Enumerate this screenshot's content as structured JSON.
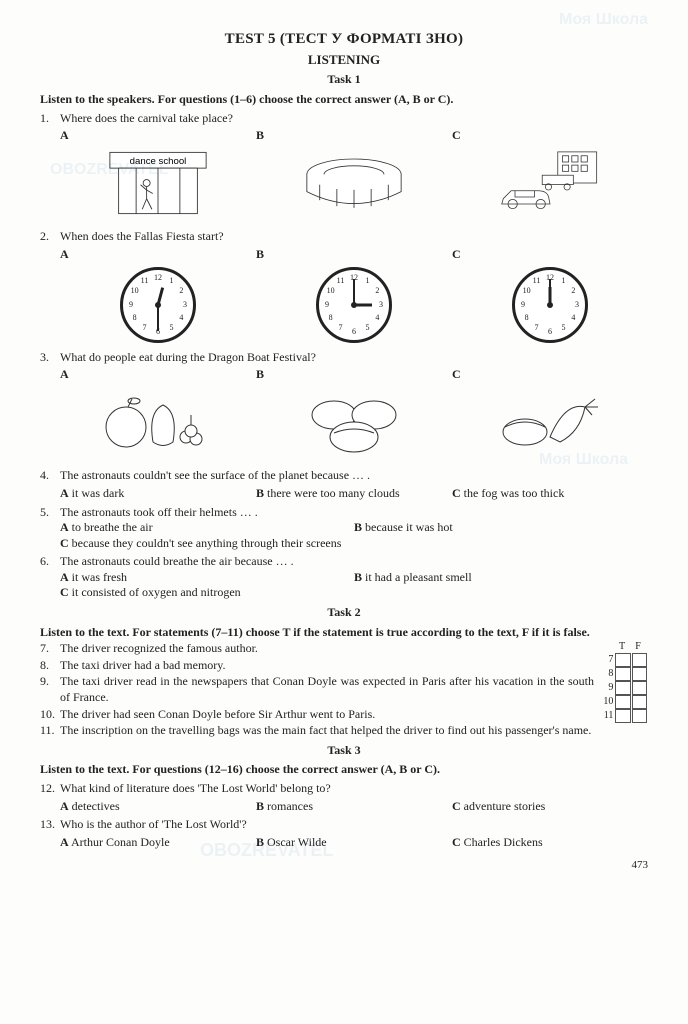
{
  "header": {
    "title": "TEST 5 (ТЕСТ У ФОРМАТІ ЗНО)",
    "section": "LISTENING",
    "task1": "Task 1",
    "task2": "Task 2",
    "task3": "Task 3",
    "instr1": "Listen to the speakers. For questions (1–6) choose the correct answer (A, B or C).",
    "instr2": "Listen to the text. For statements (7–11) choose T if the statement is true according to the text, F if it is false.",
    "instr3": "Listen to the text. For questions (12–16) choose the correct answer (A, B or C)."
  },
  "opts": {
    "A": "A",
    "B": "B",
    "C": "C",
    "T": "T",
    "F": "F"
  },
  "q1": {
    "n": "1.",
    "text": "Where does the carnival take place?",
    "imgA_label": "dance school"
  },
  "q2": {
    "n": "2.",
    "text": "When does the Fallas Fiesta start?",
    "clocks": [
      {
        "hour": 12,
        "minute": 30
      },
      {
        "hour": 3,
        "minute": 0
      },
      {
        "hour": 12,
        "minute": 0
      }
    ]
  },
  "q3": {
    "n": "3.",
    "text": "What do people eat during the Dragon Boat Festival?"
  },
  "q4": {
    "n": "4.",
    "text": "The astronauts couldn't see the surface of the planet because … .",
    "a": "it was dark",
    "b": "there were too many clouds",
    "c": "the fog was too thick"
  },
  "q5": {
    "n": "5.",
    "text": "The astronauts took off their helmets … .",
    "a": "to breathe the air",
    "b": "because it was hot",
    "c": "because they couldn't see anything through their screens"
  },
  "q6": {
    "n": "6.",
    "text": "The astronauts could breathe the air because … .",
    "a": "it was fresh",
    "b": "it had a pleasant smell",
    "c": "it consisted of oxygen and nitrogen"
  },
  "task2s": {
    "s7": {
      "n": "7.",
      "t": "The driver recognized the famous author."
    },
    "s8": {
      "n": "8.",
      "t": "The taxi driver had a bad memory."
    },
    "s9": {
      "n": "9.",
      "t": "The taxi driver read in the newspapers that Conan Doyle was expected in Paris after his vacation in the south of France."
    },
    "s10": {
      "n": "10.",
      "t": "The driver had seen Conan Doyle before Sir Arthur went to Paris."
    },
    "s11": {
      "n": "11.",
      "t": "The inscription on the travelling bags was the main fact that helped the driver to find out his passenger's name."
    },
    "rows": [
      "7",
      "8",
      "9",
      "10",
      "11"
    ]
  },
  "q12": {
    "n": "12.",
    "text": "What kind of literature does 'The Lost World' belong to?",
    "a": "detectives",
    "b": "romances",
    "c": "adventure stories"
  },
  "q13": {
    "n": "13.",
    "text": "Who is the author of 'The Lost World'?",
    "a": "Arthur Conan Doyle",
    "b": "Oscar Wilde",
    "c": "Charles Dickens"
  },
  "pagenum": "473",
  "clock_style": {
    "radius": 35,
    "num_radius": 27,
    "hour_len": 18,
    "min_len": 26,
    "hour_w": 3,
    "min_w": 2
  },
  "watermarks": {
    "t1": "Моя Школа",
    "t2": "OBOZREVATEL"
  }
}
